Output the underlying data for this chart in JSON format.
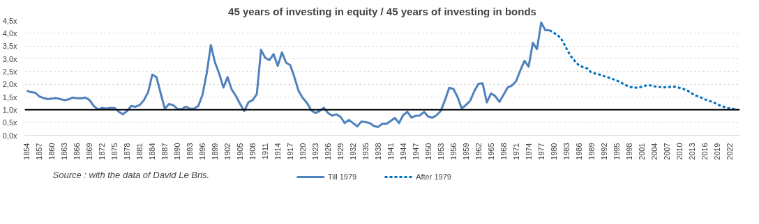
{
  "chart_data": {
    "type": "line",
    "title": "45 years of investing in equity / 45 years of investing in bonds",
    "annotations": [
      "Source : with the data of David Le Bris."
    ],
    "series": [
      {
        "name": "Till 1979",
        "color": "#4f81bd",
        "line_style": "solid",
        "x": [
          1854,
          1855,
          1856,
          1857,
          1858,
          1859,
          1860,
          1861,
          1862,
          1863,
          1864,
          1865,
          1866,
          1867,
          1868,
          1869,
          1870,
          1871,
          1872,
          1873,
          1874,
          1875,
          1876,
          1877,
          1878,
          1879,
          1880,
          1881,
          1882,
          1883,
          1884,
          1885,
          1886,
          1887,
          1888,
          1889,
          1890,
          1891,
          1892,
          1893,
          1894,
          1895,
          1896,
          1897,
          1898,
          1899,
          1900,
          1901,
          1902,
          1903,
          1904,
          1905,
          1906,
          1907,
          1908,
          1909,
          1910,
          1911,
          1912,
          1913,
          1914,
          1915,
          1916,
          1917,
          1918,
          1919,
          1920,
          1921,
          1922,
          1923,
          1924,
          1925,
          1926,
          1927,
          1928,
          1929,
          1930,
          1931,
          1932,
          1933,
          1934,
          1935,
          1936,
          1937,
          1938,
          1939,
          1940,
          1941,
          1942,
          1943,
          1944,
          1945,
          1946,
          1947,
          1948,
          1949,
          1950,
          1951,
          1952,
          1953,
          1954,
          1955,
          1956,
          1957,
          1958,
          1959,
          1960,
          1961,
          1962,
          1963,
          1964,
          1965,
          1966,
          1967,
          1968,
          1969,
          1970,
          1971,
          1972,
          1973,
          1974,
          1975,
          1976,
          1977,
          1978,
          1979
        ],
        "values": [
          1.75,
          1.69,
          1.67,
          1.52,
          1.46,
          1.42,
          1.44,
          1.46,
          1.42,
          1.38,
          1.41,
          1.48,
          1.45,
          1.45,
          1.48,
          1.38,
          1.15,
          1.02,
          1.07,
          1.05,
          1.07,
          1.07,
          0.92,
          0.83,
          0.96,
          1.15,
          1.12,
          1.19,
          1.38,
          1.69,
          2.38,
          2.28,
          1.65,
          1.04,
          1.23,
          1.18,
          1.04,
          1.02,
          1.12,
          1.04,
          1.04,
          1.15,
          1.58,
          2.42,
          3.54,
          2.85,
          2.42,
          1.87,
          2.28,
          1.79,
          1.54,
          1.23,
          0.95,
          1.3,
          1.38,
          1.62,
          3.35,
          3.04,
          2.95,
          3.18,
          2.72,
          3.25,
          2.85,
          2.75,
          2.27,
          1.73,
          1.46,
          1.27,
          0.98,
          0.87,
          0.95,
          1.08,
          0.88,
          0.77,
          0.82,
          0.73,
          0.48,
          0.6,
          0.48,
          0.35,
          0.54,
          0.52,
          0.48,
          0.36,
          0.33,
          0.45,
          0.45,
          0.56,
          0.68,
          0.48,
          0.79,
          0.92,
          0.69,
          0.77,
          0.78,
          0.92,
          0.73,
          0.69,
          0.79,
          0.96,
          1.38,
          1.86,
          1.82,
          1.5,
          1.05,
          1.19,
          1.35,
          1.73,
          2.02,
          2.04,
          1.29,
          1.64,
          1.54,
          1.31,
          1.59,
          1.88,
          1.95,
          2.12,
          2.54,
          2.92,
          2.69,
          3.63,
          3.38,
          4.42,
          4.12,
          4.12
        ]
      },
      {
        "name": "After 1979",
        "color": "#0070c0",
        "line_style": "dashed",
        "x": [
          1979,
          1980,
          1981,
          1982,
          1983,
          1984,
          1985,
          1986,
          1987,
          1988,
          1989,
          1990,
          1991,
          1992,
          1993,
          1994,
          1995,
          1996,
          1997,
          1998,
          1999,
          2000,
          2001,
          2002,
          2003,
          2004,
          2005,
          2006,
          2007,
          2008,
          2009,
          2010,
          2011,
          2012,
          2013,
          2014,
          2015,
          2016,
          2017,
          2018,
          2019,
          2020,
          2021,
          2022,
          2023,
          2024
        ],
        "values": [
          4.12,
          4.02,
          3.92,
          3.73,
          3.42,
          3.12,
          2.92,
          2.75,
          2.67,
          2.62,
          2.46,
          2.42,
          2.38,
          2.32,
          2.27,
          2.21,
          2.15,
          2.08,
          1.98,
          1.91,
          1.87,
          1.87,
          1.9,
          1.95,
          1.96,
          1.92,
          1.9,
          1.88,
          1.88,
          1.9,
          1.91,
          1.86,
          1.82,
          1.75,
          1.64,
          1.56,
          1.5,
          1.42,
          1.36,
          1.31,
          1.23,
          1.15,
          1.1,
          1.06,
          1.04,
          1.0
        ]
      }
    ],
    "ref_lines": [
      {
        "axis": "y",
        "value": 1.0,
        "color": "#000000"
      }
    ],
    "xlim": [
      1853.5,
      2024.5
    ],
    "xticks": [
      1854,
      1857,
      1860,
      1863,
      1866,
      1869,
      1872,
      1875,
      1878,
      1881,
      1884,
      1887,
      1890,
      1893,
      1896,
      1899,
      1902,
      1905,
      1908,
      1911,
      1914,
      1917,
      1920,
      1923,
      1926,
      1929,
      1932,
      1935,
      1938,
      1941,
      1944,
      1947,
      1950,
      1953,
      1956,
      1959,
      1962,
      1965,
      1968,
      1971,
      1974,
      1977,
      1980,
      1983,
      1986,
      1989,
      1992,
      1995,
      1998,
      2001,
      2004,
      2007,
      2010,
      2013,
      2016,
      2019,
      2022
    ],
    "ylim": [
      0,
      4.5
    ],
    "yticks": [
      {
        "value": 0,
        "label": "0,0x"
      },
      {
        "value": 0.5,
        "label": "0,5x"
      },
      {
        "value": 1,
        "label": "1,0x"
      },
      {
        "value": 1.5,
        "label": "1,5x"
      },
      {
        "value": 2,
        "label": "2,0x"
      },
      {
        "value": 2.5,
        "label": "2,5x"
      },
      {
        "value": 3,
        "label": "3,0x"
      },
      {
        "value": 3.5,
        "label": "3,5x"
      },
      {
        "value": 4,
        "label": "4,0x"
      },
      {
        "value": 4.5,
        "label": "4,5x"
      }
    ],
    "grid": "y",
    "legend": "bottom",
    "marker": "none"
  }
}
